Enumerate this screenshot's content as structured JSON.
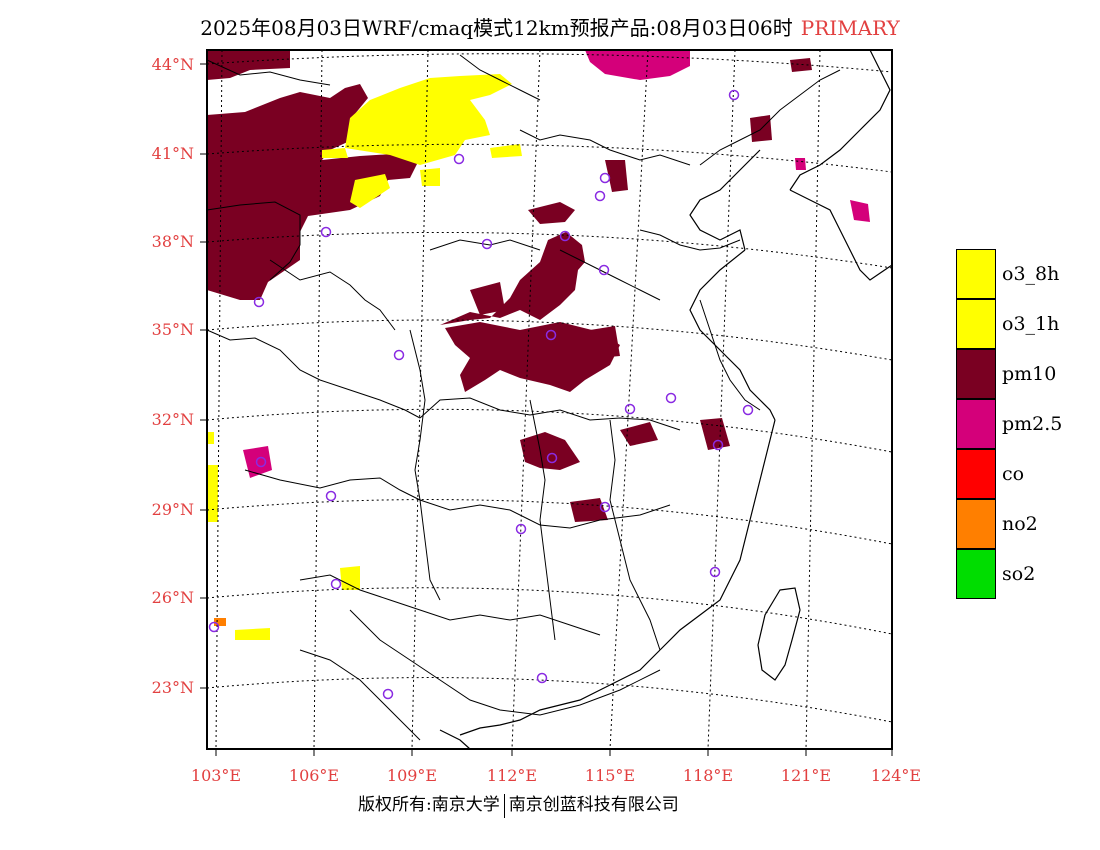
{
  "header": {
    "title": "2025年08月03日WRF/cmaq模式12km预报产品:08月03日06时",
    "tag": "PRIMARY"
  },
  "axes": {
    "lat_labels": [
      "44°N",
      "41°N",
      "38°N",
      "35°N",
      "32°N",
      "29°N",
      "26°N",
      "23°N"
    ],
    "lon_labels": [
      "103°E",
      "106°E",
      "109°E",
      "112°E",
      "115°E",
      "118°E",
      "121°E",
      "124°E"
    ]
  },
  "legend": {
    "items": [
      {
        "label": "o3_8h",
        "color": "#ffff00"
      },
      {
        "label": "o3_1h",
        "color": "#ffff00"
      },
      {
        "label": "pm10",
        "color": "#7a0022"
      },
      {
        "label": "pm2.5",
        "color": "#d4007a"
      },
      {
        "label": "co",
        "color": "#ff0000"
      },
      {
        "label": "no2",
        "color": "#ff7f00"
      },
      {
        "label": "so2",
        "color": "#00dd00"
      }
    ]
  },
  "footer": {
    "left": "版权所有:南京大学",
    "right": "南京创蓝科技有限公司"
  },
  "colors": {
    "pm10": "#7a0022",
    "pm25": "#d4007a",
    "o3": "#ffff00",
    "no2": "#ff7f00",
    "axis_label": "#e24040",
    "station": "#8a2be2"
  }
}
